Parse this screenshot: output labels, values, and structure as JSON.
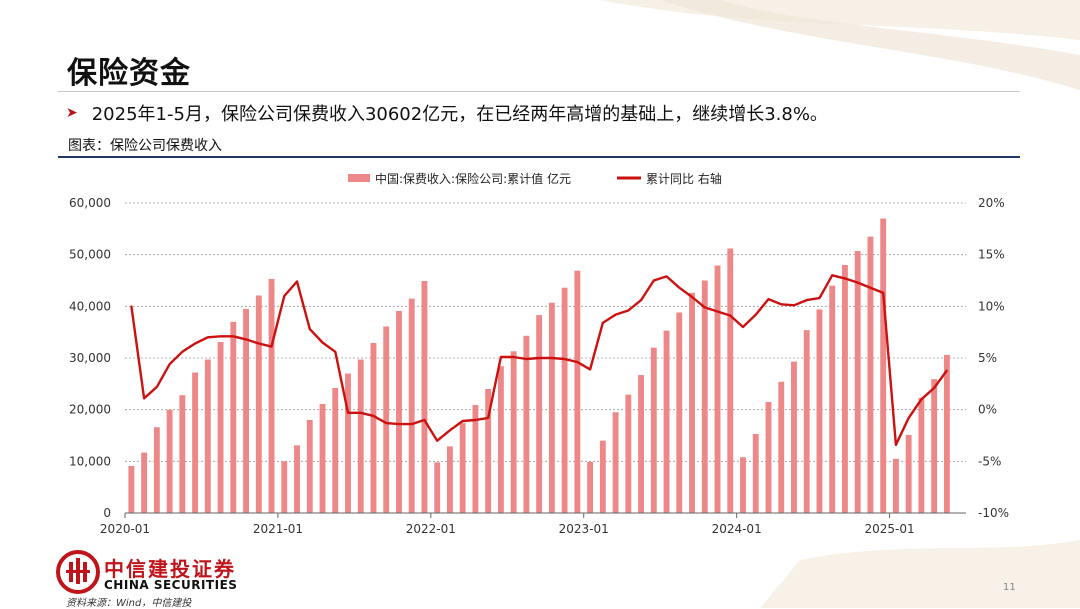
{
  "slide": {
    "title": "保险资金",
    "bullet": "2025年1-5月，保险公司保费收入30602亿元，在已经两年高增的基础上，继续增长3.8%。",
    "figure_label": "图表：保险公司保费收入",
    "source": "资料来源：Wind，中信建投",
    "page_number": "11",
    "logo_cn": "中信建投证券",
    "logo_en": "CHINA SECURITIES"
  },
  "colors": {
    "bar": "#ee8888",
    "line": "#cc1111",
    "accent": "#c0141b",
    "rule": "#1f3864"
  },
  "chart_data": {
    "type": "bar",
    "legend": [
      "中国:保费收入:保险公司:累计值 亿元",
      "累计同比 右轴"
    ],
    "legend_position": "top-center",
    "x_ticks": [
      "2020-01",
      "2021-01",
      "2022-01",
      "2023-01",
      "2024-01",
      "2025-01"
    ],
    "y_ticks_left": [
      "0",
      "10,000",
      "20,000",
      "30,000",
      "40,000",
      "50,000",
      "60,000"
    ],
    "y_ticks_right": [
      "-10%",
      "-5%",
      "0%",
      "5%",
      "10%",
      "15%",
      "20%"
    ],
    "ylim_left": [
      0,
      60000
    ],
    "ylim_right": [
      -10,
      20
    ],
    "grid": true,
    "series": [
      {
        "name": "中国:保费收入:保险公司:累计值 亿元",
        "type": "bar",
        "axis": "left",
        "x": [
          "2020-01",
          "2020-02",
          "2020-03",
          "2020-04",
          "2020-05",
          "2020-06",
          "2020-07",
          "2020-08",
          "2020-09",
          "2020-10",
          "2020-11",
          "2020-12",
          "2021-01",
          "2021-02",
          "2021-03",
          "2021-04",
          "2021-05",
          "2021-06",
          "2021-07",
          "2021-08",
          "2021-09",
          "2021-10",
          "2021-11",
          "2021-12",
          "2022-01",
          "2022-02",
          "2022-03",
          "2022-04",
          "2022-05",
          "2022-06",
          "2022-07",
          "2022-08",
          "2022-09",
          "2022-10",
          "2022-11",
          "2022-12",
          "2023-01",
          "2023-02",
          "2023-03",
          "2023-04",
          "2023-05",
          "2023-06",
          "2023-07",
          "2023-08",
          "2023-09",
          "2023-10",
          "2023-11",
          "2023-12",
          "2024-01",
          "2024-02",
          "2024-03",
          "2024-04",
          "2024-05",
          "2024-06",
          "2024-07",
          "2024-08",
          "2024-09",
          "2024-10",
          "2024-11",
          "2024-12",
          "2025-01",
          "2025-02",
          "2025-03",
          "2025-04",
          "2025-05"
        ],
        "values": [
          9100,
          11700,
          16600,
          20000,
          22800,
          27200,
          29700,
          33100,
          37000,
          39500,
          42100,
          45300,
          10000,
          13100,
          18000,
          21100,
          24200,
          27000,
          29700,
          32900,
          36100,
          39100,
          41500,
          44900,
          9800,
          12900,
          17400,
          20900,
          24000,
          28400,
          31300,
          34300,
          38300,
          40700,
          43600,
          46900,
          9900,
          14000,
          19500,
          22900,
          26700,
          32000,
          35300,
          38800,
          42600,
          45000,
          47900,
          51200,
          10800,
          15300,
          21500,
          25400,
          29300,
          35400,
          39400,
          44000,
          48000,
          50700,
          53500,
          57000,
          10500,
          15100,
          22300,
          25900,
          30602
        ]
      },
      {
        "name": "累计同比 右轴",
        "type": "line",
        "axis": "right",
        "values": [
          10.0,
          1.1,
          2.2,
          4.4,
          5.6,
          6.4,
          7.0,
          7.1,
          7.1,
          6.8,
          6.4,
          6.1,
          11.0,
          12.4,
          7.8,
          6.5,
          5.6,
          -0.3,
          -0.3,
          -0.6,
          -1.3,
          -1.4,
          -1.4,
          -1.0,
          -3.0,
          -2.0,
          -1.1,
          -1.0,
          -0.8,
          5.1,
          5.1,
          4.9,
          5.0,
          5.0,
          4.9,
          4.6,
          3.9,
          8.4,
          9.2,
          9.6,
          10.6,
          12.5,
          12.9,
          11.8,
          10.9,
          9.9,
          9.5,
          9.1,
          8.0,
          9.2,
          10.7,
          10.2,
          10.1,
          10.6,
          10.8,
          13.0,
          12.7,
          12.3,
          11.8,
          11.3,
          -3.4,
          -0.8,
          1.0,
          2.1,
          3.8
        ]
      }
    ]
  }
}
